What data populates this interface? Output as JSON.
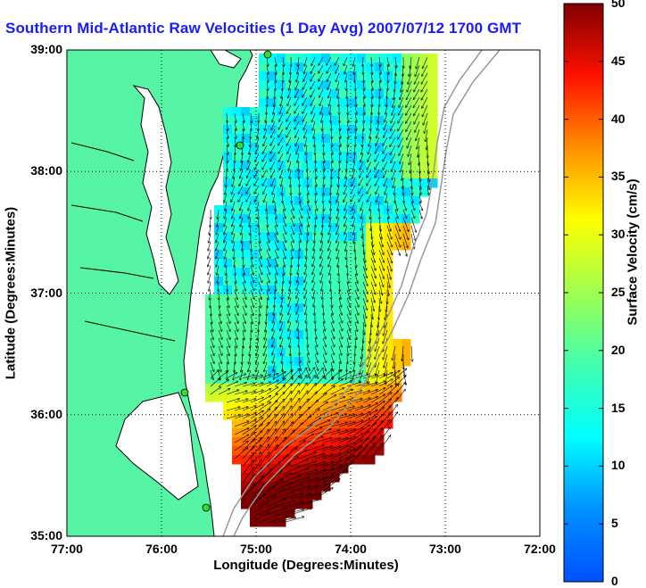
{
  "title": "Southern Mid-Atlantic Raw Velocities (1 Day Avg) 2007/07/12 1700 GMT",
  "x_axis": {
    "label": "Longitude (Degrees:Minutes)",
    "ticks": [
      "77:00",
      "76:00",
      "75:00",
      "74:00",
      "73:00",
      "72:00"
    ],
    "range": [
      -77,
      -72
    ]
  },
  "y_axis": {
    "label": "Latitude (Degrees:Minutes)",
    "ticks": [
      "39:00",
      "38:00",
      "37:00",
      "36:00",
      "35:00"
    ],
    "range": [
      35,
      39
    ]
  },
  "colorbar": {
    "label": "Surface Velocity (cm/s)",
    "ticks": [
      "50",
      "45",
      "40",
      "35",
      "30",
      "25",
      "20",
      "15",
      "10",
      "5",
      "0"
    ],
    "range": [
      0,
      50
    ],
    "colormap": "jet"
  },
  "colors": {
    "land": "#55f5a5",
    "coastline": "#000000",
    "title": "#1a1aff",
    "grid": "#000000",
    "bathymetry": "#999999",
    "station_marker": "#33dd33"
  },
  "grid": "dotted"
}
